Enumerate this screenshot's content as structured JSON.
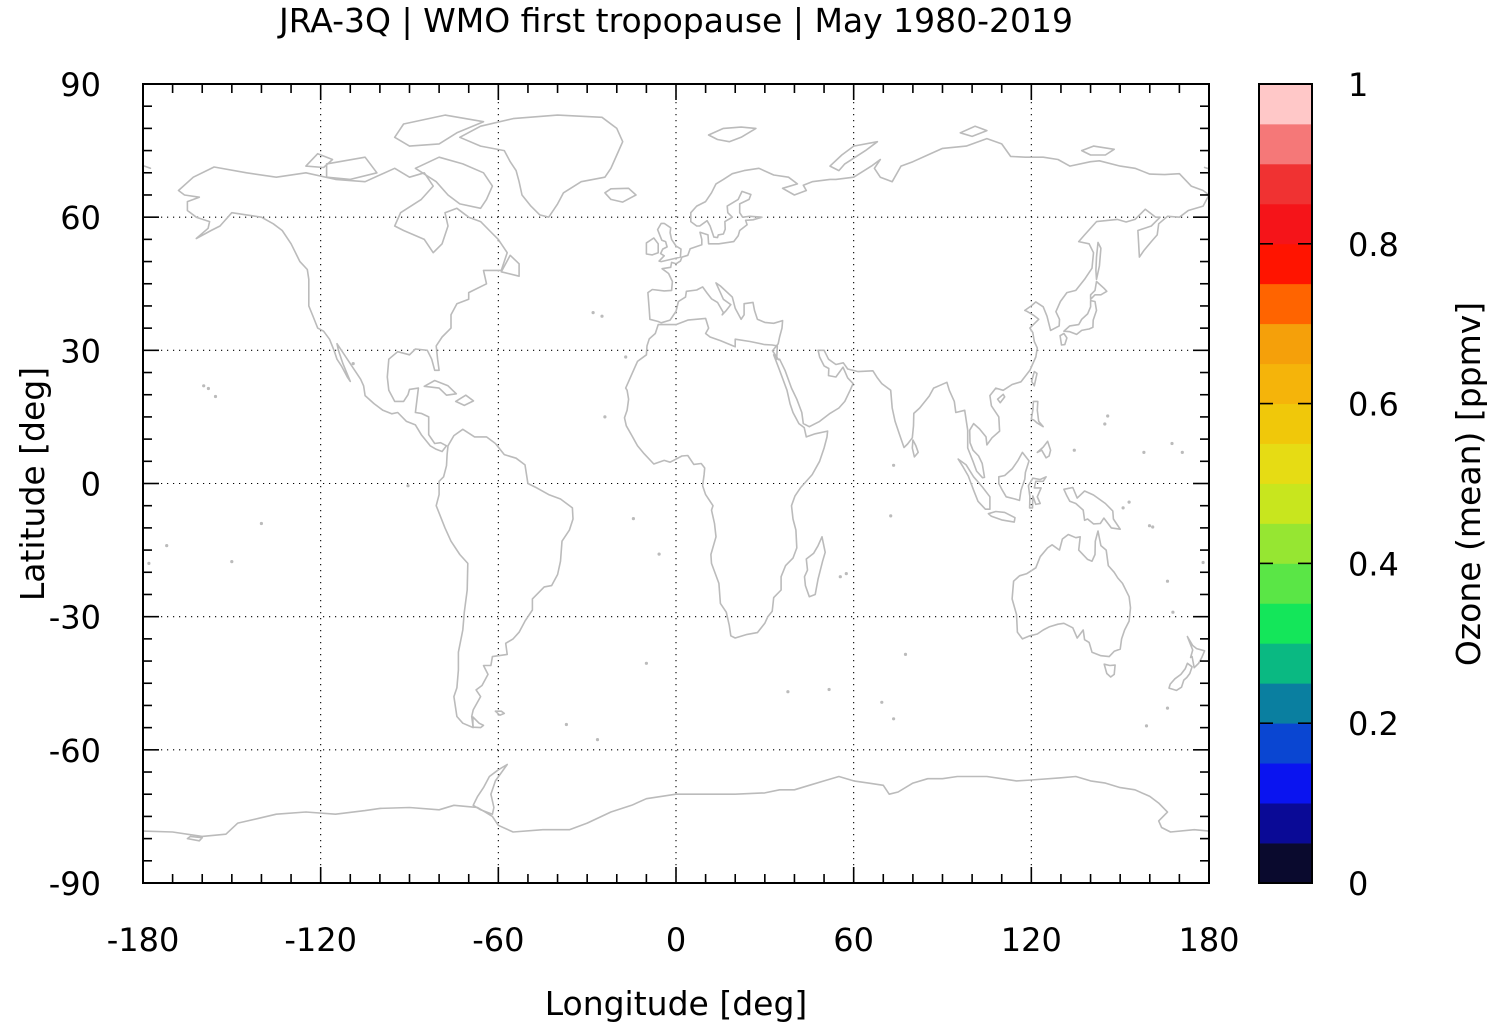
{
  "chart_data": {
    "type": "heatmap",
    "title": "JRA-3Q | WMO first tropopause | May 1980-2019",
    "xlabel": "Longitude [deg]",
    "ylabel": "Latitude [deg]",
    "xlim": [
      -180,
      180
    ],
    "ylim": [
      -90,
      90
    ],
    "x_ticks": [
      -180,
      -120,
      -60,
      0,
      60,
      120,
      180
    ],
    "y_ticks": [
      -90,
      -60,
      -30,
      0,
      30,
      60,
      90
    ],
    "x_tick_labels": [
      "-180",
      "-120",
      "-60",
      "0",
      "60",
      "120",
      "180"
    ],
    "y_tick_labels": [
      "-90",
      "-60",
      "-30",
      "0",
      "30",
      "60",
      "90"
    ],
    "grid": true,
    "coastlines": true,
    "coastline_color": "#bbbbbb",
    "colorbar": {
      "label": "Ozone (mean) [ppmv]",
      "range": [
        0,
        1
      ],
      "ticks": [
        0,
        0.2,
        0.4,
        0.6,
        0.8,
        1
      ],
      "tick_labels": [
        "0",
        "0.2",
        "0.4",
        "0.6",
        "0.8",
        "1"
      ],
      "colors": [
        "#0a0a2e",
        "#0a0a96",
        "#0a14f0",
        "#0a46d2",
        "#0a7fa0",
        "#0ab982",
        "#14e65a",
        "#5ae646",
        "#96e632",
        "#c8e61e",
        "#e6dc14",
        "#f0c80a",
        "#f5b40a",
        "#f5a00a",
        "#ff6400",
        "#ff1400",
        "#f51419",
        "#f03232",
        "#f57878",
        "#ffc8c8"
      ]
    },
    "values": []
  }
}
